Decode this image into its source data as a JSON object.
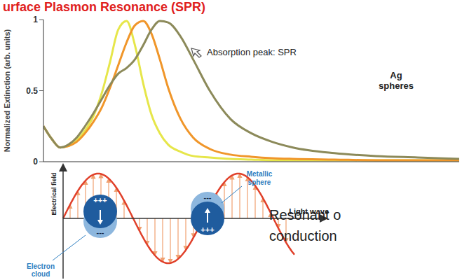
{
  "header": {
    "title": "urface Plasmon Resonance (SPR)"
  },
  "chart_data": {
    "type": "line",
    "y_label": "Normalized Extinction (arb. units)",
    "annotations": [
      "Absorption peak: SPR",
      "Ag spheres"
    ],
    "x": [
      0,
      2,
      4,
      6,
      8,
      10,
      12,
      14,
      16,
      18,
      20,
      22,
      24,
      26,
      28,
      30,
      33,
      36,
      40,
      45,
      50,
      55,
      60,
      70,
      80,
      90,
      100
    ],
    "series": [
      {
        "color": "#e6e64a",
        "values": [
          0.25,
          0.16,
          0.1,
          0.11,
          0.15,
          0.22,
          0.32,
          0.48,
          0.7,
          0.93,
          0.99,
          0.82,
          0.55,
          0.33,
          0.2,
          0.12,
          0.07,
          0.04,
          0.03,
          0.02,
          0.015,
          0.01,
          0.01,
          0.01,
          0.01,
          0.01,
          0.01
        ]
      },
      {
        "color": "#f0962a",
        "values": [
          0.25,
          0.16,
          0.1,
          0.11,
          0.14,
          0.2,
          0.28,
          0.38,
          0.52,
          0.68,
          0.84,
          0.96,
          0.99,
          0.9,
          0.72,
          0.52,
          0.3,
          0.17,
          0.09,
          0.05,
          0.035,
          0.025,
          0.02,
          0.015,
          0.01,
          0.01,
          0.01
        ]
      },
      {
        "color": "#8c8a5a",
        "values": [
          0.25,
          0.16,
          0.1,
          0.12,
          0.17,
          0.25,
          0.34,
          0.44,
          0.54,
          0.62,
          0.66,
          0.72,
          0.82,
          0.93,
          0.99,
          0.98,
          0.88,
          0.72,
          0.5,
          0.3,
          0.2,
          0.14,
          0.1,
          0.06,
          0.04,
          0.03,
          0.02
        ]
      }
    ],
    "xlim": [
      0,
      100
    ],
    "ylim": [
      0,
      1
    ],
    "yticks": [
      0,
      0.5,
      1
    ],
    "tick_labels": "y",
    "grid": false
  },
  "diagram": {
    "y_axis_label": "Electrical field",
    "x_axis_label": "Light wave",
    "spheres": [
      {
        "top": "+++",
        "bottom": "---"
      },
      {
        "top": "---",
        "bottom": "+++"
      }
    ],
    "labels": {
      "sphere": "Metallic sphere",
      "cloud": "Electron cloud"
    }
  },
  "text": [
    "Resonant o",
    "conduction"
  ]
}
